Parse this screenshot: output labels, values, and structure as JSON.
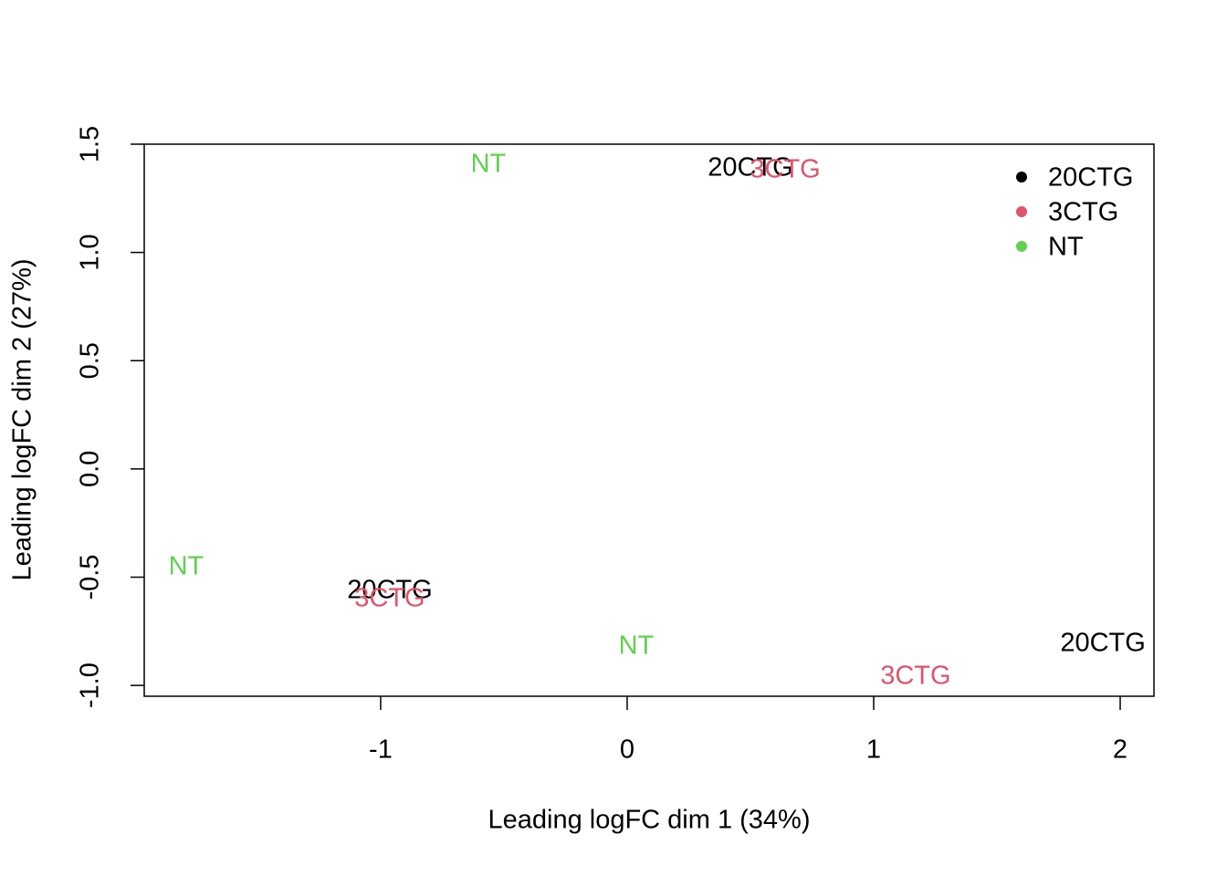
{
  "chart_data": {
    "type": "scatter",
    "x_label": "Leading logFC dim 1 (34%)",
    "y_label": "Leading logFC dim 2 (27%)",
    "series": [
      {
        "name": "20CTG",
        "color": "#000000",
        "x": [
          0.5,
          -0.963,
          1.93
        ],
        "values": [
          1.386,
          -0.565,
          -0.809
        ]
      },
      {
        "name": "3CTG",
        "color": "#DF536B",
        "x": [
          0.641,
          -0.963,
          1.17
        ],
        "values": [
          1.378,
          -0.603,
          -0.961
        ]
      },
      {
        "name": "NT",
        "color": "#61D04F",
        "x": [
          -0.563,
          -1.789,
          0.037
        ],
        "values": [
          1.403,
          -0.455,
          -0.822
        ]
      }
    ],
    "xlim": [
      -1.959,
      2.137
    ],
    "ylim": [
      -1.05,
      1.5
    ],
    "xticks": [
      -1,
      0,
      1,
      2
    ],
    "yticks": [
      {
        "value": -1.0,
        "label": "-1.0"
      },
      -0.5,
      {
        "value": 0.0,
        "label": "0.0"
      },
      0.5,
      {
        "value": 1.0,
        "label": "1.0"
      },
      1.5
    ],
    "legend": "topright"
  }
}
